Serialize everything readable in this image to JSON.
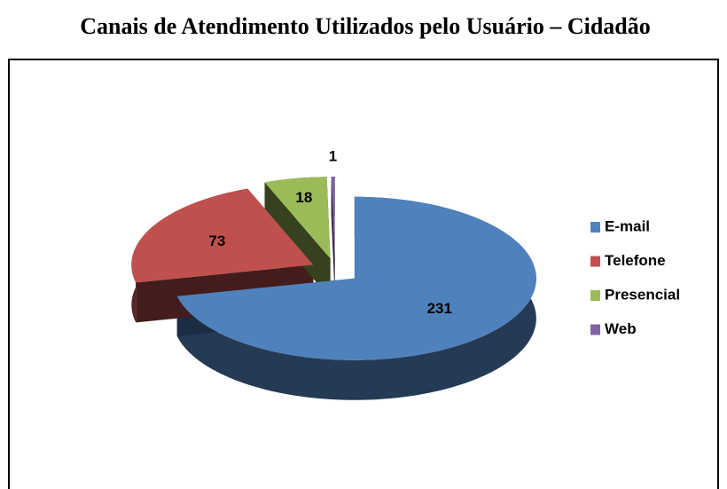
{
  "chart_data": {
    "type": "pie3d",
    "title": "Canais de Atendimento Utilizados pelo Usuário – Cidadão",
    "categories": [
      "E-mail",
      "Telefone",
      "Presencial",
      "Web"
    ],
    "values": [
      231,
      73,
      18,
      1
    ],
    "colors": [
      "#4f81bd",
      "#c0504d",
      "#9bbb59",
      "#8064a2"
    ],
    "legend": "right"
  }
}
